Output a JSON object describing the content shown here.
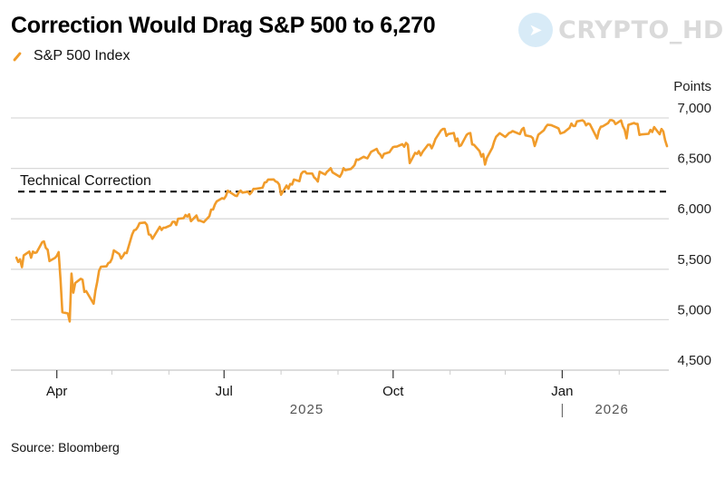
{
  "chart_data": {
    "type": "line",
    "title": "Correction Would Drag S&P 500 to 6,270",
    "legend": [
      {
        "name": "S&P 500 Index",
        "color": "#f19c2b"
      }
    ],
    "legend_placement": "top-left",
    "ylabel": "Points",
    "ylim": [
      4500,
      7000
    ],
    "yticks": [
      7000,
      6500,
      6000,
      5500,
      5000,
      4500
    ],
    "ytick_labels": [
      "7,000",
      "6,500",
      "6,000",
      "5,500",
      "5,000",
      "4,500"
    ],
    "xlim": [
      "2025-03-07",
      "2026-02-28"
    ],
    "xticks": [
      {
        "date": "2025-04-01",
        "label": "Apr"
      },
      {
        "date": "2025-07-01",
        "label": "Jul"
      },
      {
        "date": "2025-10-01",
        "label": "Oct"
      },
      {
        "date": "2026-01-01",
        "label": "Jan"
      }
    ],
    "minor_ticks_months": [
      "2025-05-01",
      "2025-06-01",
      "2025-08-01",
      "2025-09-01",
      "2025-11-01",
      "2025-12-01",
      "2026-02-01"
    ],
    "year_labels": [
      {
        "label": "2025",
        "center": "2025-08-15"
      },
      {
        "label": "2026",
        "center": "2026-01-28"
      }
    ],
    "grid": true,
    "reference_line": {
      "label": "Technical Correction",
      "value": 6270,
      "style": "dashed"
    },
    "series": [
      {
        "name": "S&P 500 Index",
        "points": [
          [
            "2025-03-10",
            5615
          ],
          [
            "2025-03-11",
            5572
          ],
          [
            "2025-03-12",
            5599
          ],
          [
            "2025-03-13",
            5521
          ],
          [
            "2025-03-14",
            5638
          ],
          [
            "2025-03-17",
            5675
          ],
          [
            "2025-03-18",
            5614
          ],
          [
            "2025-03-19",
            5675
          ],
          [
            "2025-03-20",
            5662
          ],
          [
            "2025-03-21",
            5667
          ],
          [
            "2025-03-24",
            5767
          ],
          [
            "2025-03-25",
            5776
          ],
          [
            "2025-03-26",
            5712
          ],
          [
            "2025-03-27",
            5693
          ],
          [
            "2025-03-28",
            5581
          ],
          [
            "2025-03-31",
            5612
          ],
          [
            "2025-04-01",
            5633
          ],
          [
            "2025-04-02",
            5670
          ],
          [
            "2025-04-03",
            5396
          ],
          [
            "2025-04-04",
            5074
          ],
          [
            "2025-04-07",
            5062
          ],
          [
            "2025-04-08",
            4982
          ],
          [
            "2025-04-09",
            5457
          ],
          [
            "2025-04-10",
            5268
          ],
          [
            "2025-04-11",
            5363
          ],
          [
            "2025-04-14",
            5406
          ],
          [
            "2025-04-15",
            5396
          ],
          [
            "2025-04-16",
            5275
          ],
          [
            "2025-04-17",
            5283
          ],
          [
            "2025-04-21",
            5158
          ],
          [
            "2025-04-22",
            5287
          ],
          [
            "2025-04-23",
            5376
          ],
          [
            "2025-04-24",
            5485
          ],
          [
            "2025-04-25",
            5525
          ],
          [
            "2025-04-28",
            5529
          ],
          [
            "2025-04-29",
            5561
          ],
          [
            "2025-04-30",
            5569
          ],
          [
            "2025-05-01",
            5604
          ],
          [
            "2025-05-02",
            5687
          ],
          [
            "2025-05-05",
            5650
          ],
          [
            "2025-05-06",
            5607
          ],
          [
            "2025-05-07",
            5631
          ],
          [
            "2025-05-08",
            5664
          ],
          [
            "2025-05-09",
            5660
          ],
          [
            "2025-05-12",
            5844
          ],
          [
            "2025-05-13",
            5886
          ],
          [
            "2025-05-14",
            5892
          ],
          [
            "2025-05-15",
            5917
          ],
          [
            "2025-05-16",
            5958
          ],
          [
            "2025-05-19",
            5963
          ],
          [
            "2025-05-20",
            5940
          ],
          [
            "2025-05-21",
            5845
          ],
          [
            "2025-05-22",
            5842
          ],
          [
            "2025-05-23",
            5802
          ],
          [
            "2025-05-27",
            5921
          ],
          [
            "2025-05-28",
            5889
          ],
          [
            "2025-05-29",
            5912
          ],
          [
            "2025-05-30",
            5912
          ],
          [
            "2025-06-02",
            5936
          ],
          [
            "2025-06-03",
            5970
          ],
          [
            "2025-06-04",
            5971
          ],
          [
            "2025-06-05",
            5939
          ],
          [
            "2025-06-06",
            6000
          ],
          [
            "2025-06-09",
            6006
          ],
          [
            "2025-06-10",
            6038
          ],
          [
            "2025-06-11",
            6022
          ],
          [
            "2025-06-12",
            6045
          ],
          [
            "2025-06-13",
            5977
          ],
          [
            "2025-06-16",
            6033
          ],
          [
            "2025-06-17",
            5982
          ],
          [
            "2025-06-18",
            5981
          ],
          [
            "2025-06-20",
            5967
          ],
          [
            "2025-06-23",
            6025
          ],
          [
            "2025-06-24",
            6092
          ],
          [
            "2025-06-25",
            6092
          ],
          [
            "2025-06-26",
            6141
          ],
          [
            "2025-06-27",
            6173
          ],
          [
            "2025-06-30",
            6205
          ],
          [
            "2025-07-01",
            6198
          ],
          [
            "2025-07-02",
            6227
          ],
          [
            "2025-07-03",
            6279
          ],
          [
            "2025-07-07",
            6230
          ],
          [
            "2025-07-08",
            6226
          ],
          [
            "2025-07-09",
            6263
          ],
          [
            "2025-07-10",
            6280
          ],
          [
            "2025-07-11",
            6260
          ],
          [
            "2025-07-14",
            6269
          ],
          [
            "2025-07-15",
            6244
          ],
          [
            "2025-07-16",
            6264
          ],
          [
            "2025-07-17",
            6297
          ],
          [
            "2025-07-18",
            6297
          ],
          [
            "2025-07-21",
            6305
          ],
          [
            "2025-07-22",
            6309
          ],
          [
            "2025-07-23",
            6359
          ],
          [
            "2025-07-24",
            6363
          ],
          [
            "2025-07-25",
            6389
          ],
          [
            "2025-07-28",
            6390
          ],
          [
            "2025-07-29",
            6371
          ],
          [
            "2025-07-30",
            6363
          ],
          [
            "2025-07-31",
            6339
          ],
          [
            "2025-08-01",
            6238
          ],
          [
            "2025-08-04",
            6330
          ],
          [
            "2025-08-05",
            6299
          ],
          [
            "2025-08-06",
            6345
          ],
          [
            "2025-08-07",
            6340
          ],
          [
            "2025-08-08",
            6389
          ],
          [
            "2025-08-11",
            6373
          ],
          [
            "2025-08-12",
            6446
          ],
          [
            "2025-08-13",
            6466
          ],
          [
            "2025-08-14",
            6469
          ],
          [
            "2025-08-15",
            6450
          ],
          [
            "2025-08-18",
            6449
          ],
          [
            "2025-08-19",
            6411
          ],
          [
            "2025-08-20",
            6396
          ],
          [
            "2025-08-21",
            6370
          ],
          [
            "2025-08-22",
            6467
          ],
          [
            "2025-08-25",
            6439
          ],
          [
            "2025-08-26",
            6466
          ],
          [
            "2025-08-27",
            6481
          ],
          [
            "2025-08-28",
            6502
          ],
          [
            "2025-08-29",
            6460
          ],
          [
            "2025-09-02",
            6416
          ],
          [
            "2025-09-03",
            6448
          ],
          [
            "2025-09-04",
            6502
          ],
          [
            "2025-09-05",
            6482
          ],
          [
            "2025-09-08",
            6495
          ],
          [
            "2025-09-09",
            6512
          ],
          [
            "2025-09-10",
            6532
          ],
          [
            "2025-09-11",
            6588
          ],
          [
            "2025-09-12",
            6584
          ],
          [
            "2025-09-15",
            6615
          ],
          [
            "2025-09-16",
            6606
          ],
          [
            "2025-09-17",
            6600
          ],
          [
            "2025-09-18",
            6631
          ],
          [
            "2025-09-19",
            6664
          ],
          [
            "2025-09-22",
            6693
          ],
          [
            "2025-09-23",
            6656
          ],
          [
            "2025-09-24",
            6638
          ],
          [
            "2025-09-25",
            6605
          ],
          [
            "2025-09-26",
            6644
          ],
          [
            "2025-09-29",
            6661
          ],
          [
            "2025-09-30",
            6688
          ],
          [
            "2025-10-01",
            6711
          ],
          [
            "2025-10-02",
            6715
          ],
          [
            "2025-10-03",
            6716
          ],
          [
            "2025-10-06",
            6740
          ],
          [
            "2025-10-07",
            6714
          ],
          [
            "2025-10-08",
            6753
          ],
          [
            "2025-10-09",
            6735
          ],
          [
            "2025-10-10",
            6552
          ],
          [
            "2025-10-13",
            6654
          ],
          [
            "2025-10-14",
            6644
          ],
          [
            "2025-10-15",
            6671
          ],
          [
            "2025-10-16",
            6629
          ],
          [
            "2025-10-17",
            6664
          ],
          [
            "2025-10-20",
            6735
          ],
          [
            "2025-10-21",
            6735
          ],
          [
            "2025-10-22",
            6699
          ],
          [
            "2025-10-23",
            6738
          ],
          [
            "2025-10-24",
            6791
          ],
          [
            "2025-10-27",
            6875
          ],
          [
            "2025-10-28",
            6890
          ],
          [
            "2025-10-29",
            6891
          ],
          [
            "2025-10-30",
            6822
          ],
          [
            "2025-10-31",
            6840
          ],
          [
            "2025-11-03",
            6851
          ],
          [
            "2025-11-04",
            6771
          ],
          [
            "2025-11-05",
            6796
          ],
          [
            "2025-11-06",
            6720
          ],
          [
            "2025-11-07",
            6728
          ],
          [
            "2025-11-10",
            6832
          ],
          [
            "2025-11-11",
            6846
          ],
          [
            "2025-11-12",
            6850
          ],
          [
            "2025-11-13",
            6737
          ],
          [
            "2025-11-14",
            6734
          ],
          [
            "2025-11-17",
            6672
          ],
          [
            "2025-11-18",
            6617
          ],
          [
            "2025-11-19",
            6642
          ],
          [
            "2025-11-20",
            6538
          ],
          [
            "2025-11-21",
            6603
          ],
          [
            "2025-11-24",
            6705
          ],
          [
            "2025-11-25",
            6766
          ],
          [
            "2025-11-26",
            6813
          ],
          [
            "2025-11-28",
            6849
          ],
          [
            "2025-12-01",
            6812
          ],
          [
            "2025-12-02",
            6829
          ],
          [
            "2025-12-03",
            6850
          ],
          [
            "2025-12-04",
            6857
          ],
          [
            "2025-12-05",
            6870
          ],
          [
            "2025-12-08",
            6846
          ],
          [
            "2025-12-09",
            6840
          ],
          [
            "2025-12-10",
            6886
          ],
          [
            "2025-12-11",
            6901
          ],
          [
            "2025-12-12",
            6827
          ],
          [
            "2025-12-15",
            6816
          ],
          [
            "2025-12-16",
            6800
          ],
          [
            "2025-12-17",
            6721
          ],
          [
            "2025-12-18",
            6775
          ],
          [
            "2025-12-19",
            6834
          ],
          [
            "2025-12-22",
            6878
          ],
          [
            "2025-12-23",
            6909
          ],
          [
            "2025-12-24",
            6932
          ],
          [
            "2025-12-26",
            6929
          ],
          [
            "2025-12-29",
            6905
          ],
          [
            "2025-12-30",
            6896
          ],
          [
            "2025-12-31",
            6845
          ],
          [
            "2026-01-02",
            6858
          ],
          [
            "2026-01-05",
            6902
          ],
          [
            "2026-01-06",
            6944
          ],
          [
            "2026-01-07",
            6920
          ],
          [
            "2026-01-08",
            6921
          ],
          [
            "2026-01-09",
            6966
          ],
          [
            "2026-01-12",
            6977
          ],
          [
            "2026-01-13",
            6963
          ],
          [
            "2026-01-14",
            6926
          ],
          [
            "2026-01-15",
            6944
          ],
          [
            "2026-01-16",
            6940
          ],
          [
            "2026-01-20",
            6797
          ],
          [
            "2026-01-21",
            6875
          ],
          [
            "2026-01-22",
            6913
          ],
          [
            "2026-01-23",
            6916
          ],
          [
            "2026-01-26",
            6950
          ],
          [
            "2026-01-27",
            6978
          ],
          [
            "2026-01-28",
            6978
          ],
          [
            "2026-01-29",
            6969
          ],
          [
            "2026-01-30",
            6939
          ],
          [
            "2026-02-02",
            6976
          ],
          [
            "2026-02-03",
            6917
          ],
          [
            "2026-02-04",
            6883
          ],
          [
            "2026-02-05",
            6798
          ],
          [
            "2026-02-06",
            6932
          ],
          [
            "2026-02-09",
            6950
          ],
          [
            "2026-02-10",
            6941
          ],
          [
            "2026-02-11",
            6941
          ],
          [
            "2026-02-12",
            6832
          ],
          [
            "2026-02-13",
            6836
          ],
          [
            "2026-02-17",
            6843
          ],
          [
            "2026-02-18",
            6881
          ],
          [
            "2026-02-19",
            6861
          ],
          [
            "2026-02-20",
            6909
          ],
          [
            "2026-02-23",
            6838
          ],
          [
            "2026-02-24",
            6890
          ],
          [
            "2026-02-25",
            6866
          ],
          [
            "2026-02-26",
            6780
          ],
          [
            "2026-02-27",
            6720
          ]
        ]
      }
    ],
    "source": "Source: Bloomberg"
  },
  "watermark": {
    "text": "CRYPTO_HD",
    "icon": "telegram-icon"
  }
}
